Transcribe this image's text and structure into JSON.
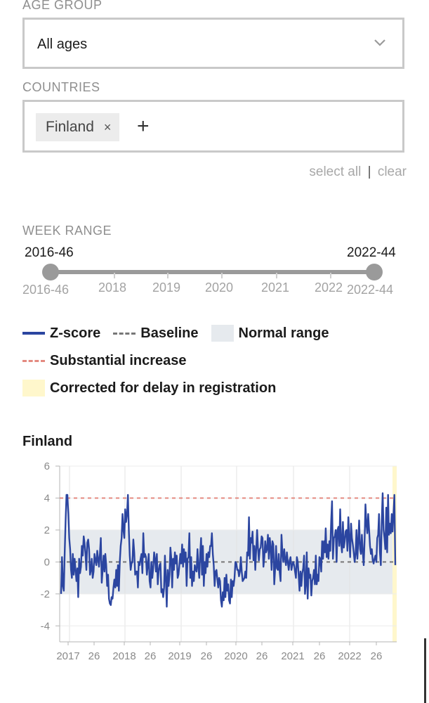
{
  "age_group": {
    "label": "AGE GROUP",
    "value": "All ages"
  },
  "countries": {
    "label": "COUNTRIES",
    "chips": [
      "Finland"
    ],
    "remove_glyph": "×",
    "add_glyph": "+"
  },
  "links": {
    "select_all": "select all",
    "separator": "|",
    "clear": "clear"
  },
  "week_range": {
    "label": "WEEK RANGE",
    "start_value": "2016-46",
    "end_value": "2022-44",
    "start_label": "2016-46",
    "end_label": "2022-44",
    "years": [
      "2018",
      "2019",
      "2020",
      "2021",
      "2022"
    ]
  },
  "legend": {
    "zscore": "Z-score",
    "baseline": "Baseline",
    "normal_range": "Normal range",
    "substantial": "Substantial increase",
    "corrected": "Corrected for delay in registration"
  },
  "colors": {
    "zscore": "#2b45a0",
    "baseline": "#777777",
    "normal_range": "#e6eaee",
    "substantial": "#e48a80",
    "corrected": "#fff7cc"
  },
  "chart_data": {
    "type": "line",
    "title": "Finland",
    "xlabel": "",
    "ylabel": "",
    "ylim": [
      -5,
      6
    ],
    "y_ticks": [
      6,
      4,
      2,
      0,
      -2,
      -4
    ],
    "x_tick_labels": [
      "2017",
      "26",
      "2018",
      "26",
      "2019",
      "26",
      "2020",
      "26",
      "2021",
      "26",
      "2022",
      "26"
    ],
    "baseline": 0,
    "normal_range": [
      -2,
      2
    ],
    "substantial_increase": 4,
    "corrected_weeks_from": "2022-41",
    "series": [
      {
        "name": "Z-score",
        "values": [
          -2.0,
          0.3,
          -1.5,
          -1.8,
          0.5,
          2.5,
          4.2,
          4.2,
          3.0,
          1.5,
          0.8,
          -0.5,
          -1.0,
          0.5,
          -0.8,
          0.2,
          -0.5,
          -1.2,
          -0.4,
          -2.2,
          0.2,
          -0.7,
          -0.3,
          1.0,
          0.4,
          1.6,
          1.2,
          0.5,
          -0.5,
          1.2,
          1.4,
          0.8,
          -0.8,
          -0.5,
          0.2,
          -1.0,
          -0.6,
          0.5,
          0.1,
          -0.2,
          0.7,
          0.2,
          -0.3,
          0.5,
          1.5,
          -1.3,
          -0.5,
          0.4,
          -0.6,
          0.5,
          -0.2,
          -1.5,
          -0.8,
          -2.3,
          -2.6,
          -2.7,
          -2.2,
          -2.3,
          -1.6,
          -1.1,
          -1.6,
          -0.5,
          -1.5,
          -0.2,
          -1.8,
          0.0,
          1.0,
          1.5,
          3.0,
          2.0,
          1.5,
          3.3,
          2.5,
          3.0,
          4.2,
          2.0,
          0.4,
          -0.5,
          -0.1,
          0.0,
          1.4,
          0.6,
          -0.8,
          -0.6,
          -0.6,
          -1.6,
          0.0,
          -0.2,
          0.2,
          0.5,
          -0.7,
          1.8,
          0.3,
          0.5,
          0.3,
          -0.8,
          -0.2,
          0.5,
          -1.2,
          -1.6,
          0.0,
          -1.0,
          -0.4,
          0.6,
          0.2,
          -0.6,
          0.5,
          -1.4,
          -0.6,
          -0.2,
          -0.1,
          -1.9,
          -1.7,
          -2.2,
          -1.6,
          0.4,
          -1.0,
          -2.8,
          -0.5,
          -1.5,
          -0.8,
          0.9,
          0.2,
          -1.6,
          0.2,
          -0.5,
          0.6,
          -0.1,
          0.4,
          -1.0,
          -0.8,
          -0.2,
          0.5,
          -0.1,
          1.1,
          -0.3,
          0.8,
          0.0,
          0.6,
          -1.5,
          0.2,
          0.3,
          1.8,
          -1.0,
          0.3,
          -1.5,
          -0.6,
          -1.2,
          -0.2,
          -0.5,
          -0.6,
          0.8,
          -0.3,
          -1.0,
          0.5,
          1.5,
          -0.8,
          1.0,
          -1.5,
          0.0,
          -0.7,
          0.5,
          -0.3,
          0.6,
          0.3,
          1.0,
          1.0,
          1.8,
          0.5,
          -0.2,
          -1.5,
          -0.6,
          -0.5,
          -1.1,
          -1.6,
          -1.0,
          -1.2,
          -2.4,
          -2.8,
          -1.9,
          -2.4,
          -1.0,
          -2.2,
          -0.8,
          -1.8,
          -1.4,
          -2.4,
          -2.6,
          -1.1,
          -2.2,
          -1.2,
          -1.5,
          -1.0,
          0.0,
          -0.1,
          -0.5,
          -0.5,
          -0.9,
          -0.6,
          0.3,
          -0.6,
          -1.2,
          -1.1,
          -1.0,
          -0.6,
          -1.0,
          0.6,
          0.4,
          2.8,
          0.2,
          1.5,
          1.2,
          1.9,
          0.1,
          1.0,
          -0.5,
          0.8,
          2.0,
          0.8,
          0.1,
          0.8,
          0.9,
          1.6,
          1.5,
          -0.3,
          0.3,
          1.3,
          0.6,
          0.8,
          1.7,
          0.2,
          1.5,
          0.9,
          -0.5,
          1.3,
          1.1,
          -1.4,
          -0.4,
          1.0,
          -0.4,
          -0.5,
          0.5,
          -0.6,
          -1.2,
          1.7,
          0.6,
          0.0,
          0.8,
          0.2,
          -0.2,
          0.6,
          0.0,
          -0.5,
          0.1,
          0.3,
          -0.5,
          -0.2,
          0.0,
          -0.2,
          -0.6,
          -1.0,
          0.3,
          0.0,
          -0.8,
          -1.8,
          -0.6,
          -1.5,
          -0.7,
          -0.4,
          0.4,
          -2.0,
          -1.4,
          0.6,
          -2.3,
          -0.4,
          -1.0,
          -0.8,
          -2.1,
          -1.2,
          -1.0,
          -0.5,
          -1.4,
          0.4,
          -1.4,
          -0.8,
          -1.2,
          0.3,
          0.2,
          -0.6,
          1.3,
          0.2,
          1.3,
          0.6,
          2.1,
          0.3,
          1.1,
          0.2,
          1.3,
          0.7,
          2.6,
          3.8,
          0.2,
          1.5,
          1.6,
          2.0,
          0.0,
          2.0,
          2.2,
          1.0,
          3.3,
          1.2,
          0.6,
          2.5,
          0.9,
          1.3,
          1.9,
          2.0,
          0.7,
          2.8,
          1.5,
          0.3,
          2.4,
          1.5,
          1.1,
          0.6,
          0.0,
          0.5,
          2.0,
          0.2,
          1.3,
          2.6,
          0.8,
          0.5,
          1.7,
          0.6,
          -0.2,
          1.4,
          3.6,
          2.4,
          1.8,
          3.0,
          2.0,
          1.0,
          0.5,
          0.8,
          0.1,
          -0.1,
          0.2,
          0.4,
          0.0,
          1.5,
          1.7,
          3.0,
          0.6,
          -0.2,
          2.6,
          4.3,
          2.0,
          1.5,
          0.8,
          3.4,
          0.6,
          4.2,
          1.7,
          2.4,
          1.8,
          3.0,
          1.9,
          3.0,
          4.2,
          -0.2
        ]
      }
    ]
  }
}
